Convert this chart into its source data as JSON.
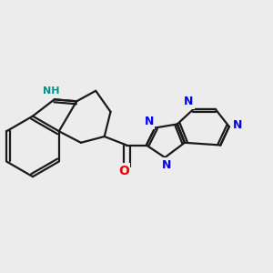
{
  "background_color": "#ececec",
  "bond_color": "#1a1a1a",
  "nitrogen_color": "#0000ee",
  "oxygen_color": "#ee0000",
  "nh_color": "#009090",
  "line_width": 1.6,
  "dbo": 0.028,
  "figsize": [
    3.0,
    3.0
  ],
  "dpi": 100,
  "xlim": [
    -0.05,
    2.15
  ],
  "ylim": [
    -0.1,
    1.5
  ]
}
